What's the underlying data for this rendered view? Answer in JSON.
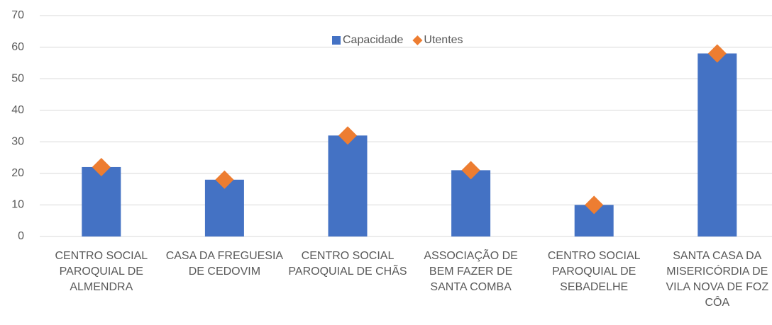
{
  "chart_data": {
    "type": "bar",
    "categories": [
      "CENTRO SOCIAL PAROQUIAL DE ALMENDRA",
      "CASA DA FREGUESIA DE CEDOVIM",
      "CENTRO SOCIAL PAROQUIAL DE CHÃS",
      "ASSOCIAÇÃO DE BEM FAZER DE SANTA COMBA",
      "CENTRO SOCIAL PAROQUIAL DE SEBADELHE",
      "SANTA CASA DA MISERICÓRDIA DE VILA NOVA DE FOZ CÔA"
    ],
    "series": [
      {
        "name": "Capacidade",
        "type": "bar",
        "color": "#4472c4",
        "values": [
          22,
          18,
          32,
          21,
          10,
          58
        ]
      },
      {
        "name": "Utentes",
        "type": "scatter",
        "marker": "diamond",
        "color": "#ed7d31",
        "values": [
          22,
          18,
          32,
          21,
          10,
          58
        ]
      }
    ],
    "ylim": [
      0,
      70
    ],
    "yticks": [
      0,
      10,
      20,
      30,
      40,
      50,
      60,
      70
    ],
    "grid": true,
    "legend": "top"
  }
}
